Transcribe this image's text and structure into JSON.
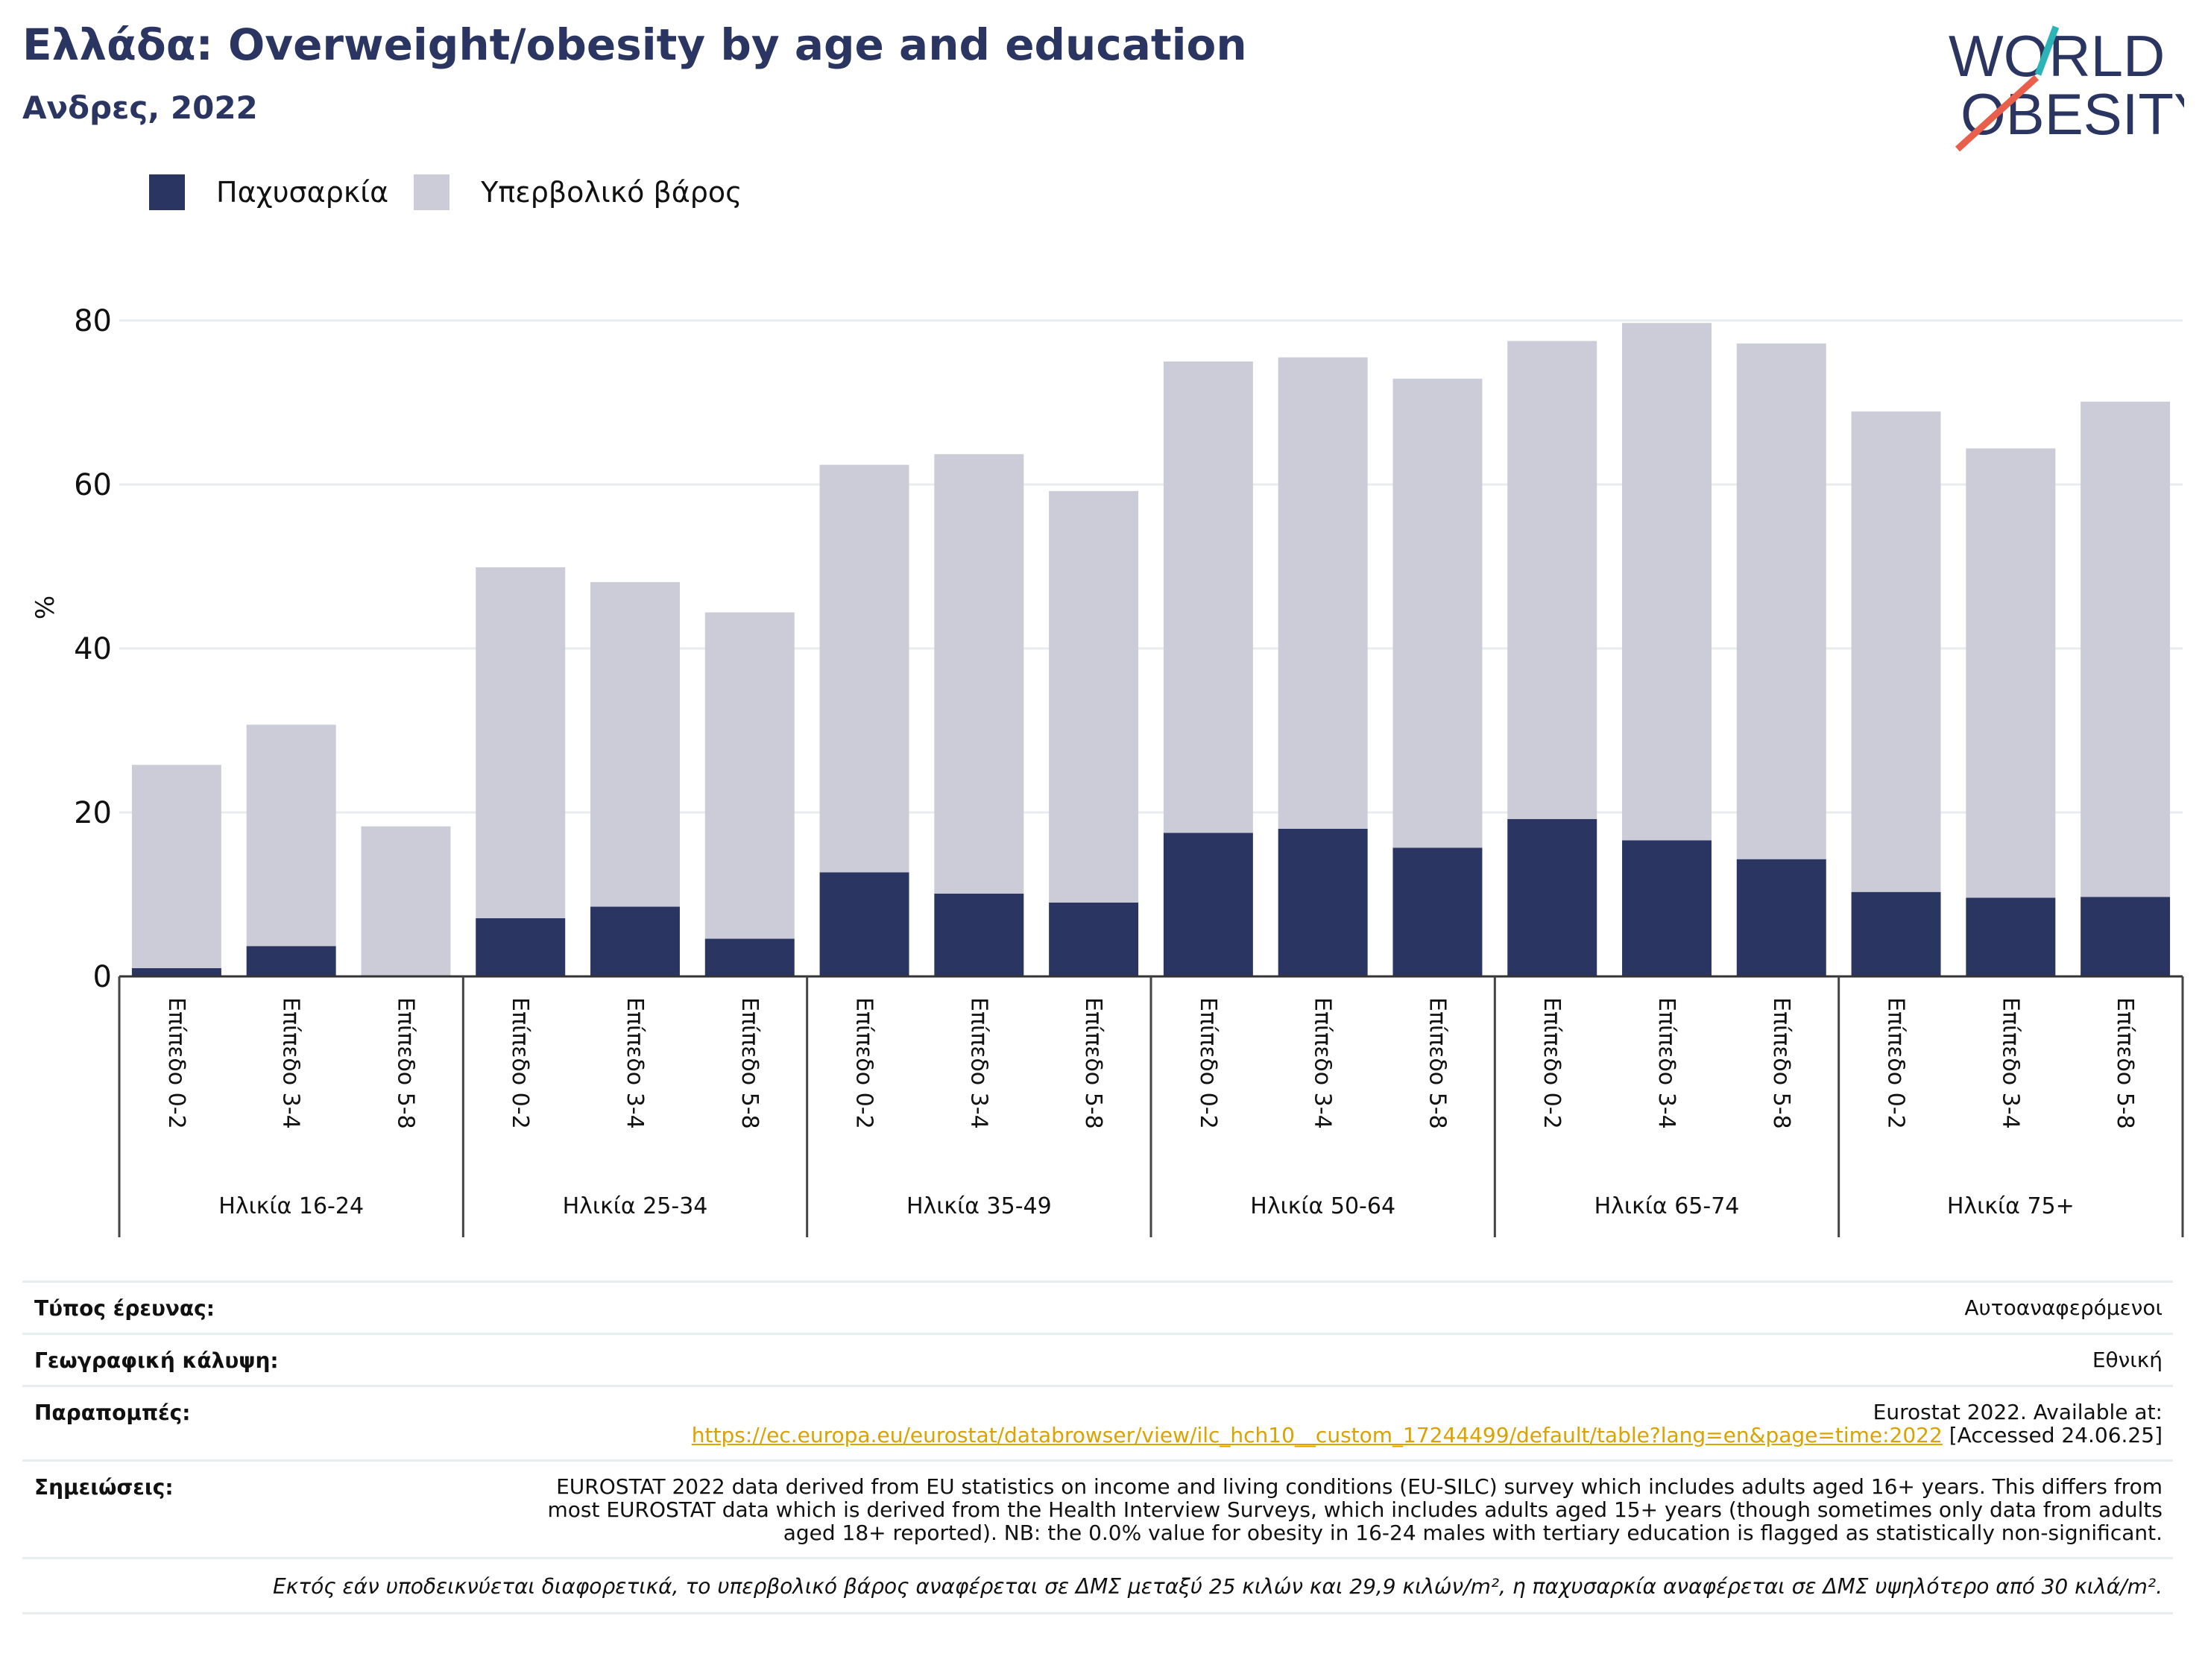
{
  "header": {
    "title": "Ελλάδα: Overweight/obesity by age and education",
    "subtitle": "Ανδρες, 2022"
  },
  "logo": {
    "line1": "WORLD",
    "line2": "OBESITY",
    "color": "#2b3561",
    "accent1": "#2bb3b8",
    "accent2": "#e8604c"
  },
  "legend": [
    {
      "label": "Παχυσαρκία",
      "color": "#2b3561"
    },
    {
      "label": "Υπερβολικό βάρος",
      "color": "#cbccd8"
    }
  ],
  "chart_data": {
    "type": "bar",
    "stacked": true,
    "ylabel": "%",
    "ylim": [
      0,
      85
    ],
    "yticks": [
      0,
      20,
      40,
      60,
      80
    ],
    "grid": true,
    "legend_position": "top-left",
    "categories": [
      "Επίπεδο 0-2",
      "Επίπεδο 3-4",
      "Επίπεδο 5-8",
      "Επίπεδο 0-2",
      "Επίπεδο 3-4",
      "Επίπεδο 5-8",
      "Επίπεδο 0-2",
      "Επίπεδο 3-4",
      "Επίπεδο 5-8",
      "Επίπεδο 0-2",
      "Επίπεδο 3-4",
      "Επίπεδο 5-8",
      "Επίπεδο 0-2",
      "Επίπεδο 3-4",
      "Επίπεδο 5-8",
      "Επίπεδο 0-2",
      "Επίπεδο 3-4",
      "Επίπεδο 5-8"
    ],
    "groups": [
      "Ηλικία 16-24",
      "Ηλικία 25-34",
      "Ηλικία 35-49",
      "Ηλικία 50-64",
      "Ηλικία 65-74",
      "Ηλικία 75+"
    ],
    "series": [
      {
        "name": "Παχυσαρκία",
        "color": "#2b3561",
        "values": [
          1.0,
          3.7,
          0.0,
          7.1,
          8.5,
          4.6,
          12.7,
          10.1,
          9.0,
          17.5,
          18.0,
          15.7,
          19.2,
          16.6,
          14.3,
          10.3,
          9.6,
          9.7
        ]
      },
      {
        "name": "Υπερβολικό βάρος",
        "color": "#cbccd8",
        "values": [
          24.8,
          27.0,
          18.3,
          42.8,
          39.6,
          39.8,
          49.7,
          53.6,
          50.2,
          57.5,
          57.5,
          57.2,
          58.3,
          63.1,
          62.9,
          58.6,
          54.8,
          60.4
        ]
      }
    ]
  },
  "meta": {
    "survey_label": "Τύπος έρευνας:",
    "survey_value": "Αυτοαναφερόμενοι",
    "coverage_label": "Γεωγραφική κάλυψη:",
    "coverage_value": "Εθνική",
    "refs_label": "Παραπομπές:",
    "refs_line1": "Eurostat 2022. Available at:",
    "refs_link": "https://ec.europa.eu/eurostat/databrowser/view/ilc_hch10__custom_17244499/default/table?lang=en&page=time:2022",
    "refs_accessed": " [Accessed 24.06.25]",
    "notes_label": "Σημειώσεις:",
    "notes_text": "EUROSTAT 2022 data derived from EU statistics on income and living conditions (EU-SILC) survey which includes adults aged 16+ years. This differs from most EUROSTAT data which is derived from the Health Interview Surveys, which includes adults aged 15+ years (though sometimes only data from adults aged 18+ reported). NB: the 0.0% value for obesity in 16-24 males with tertiary education is flagged as statistically non-significant.",
    "footnote": "Εκτός εάν υποδεικνύεται διαφορετικά, το υπερβολικό βάρος αναφέρεται σε ΔΜΣ μεταξύ 25 κιλών και 29,9 κιλών/m², η παχυσαρκία αναφέρεται σε ΔΜΣ υψηλότερο από 30 κιλά/m²."
  }
}
